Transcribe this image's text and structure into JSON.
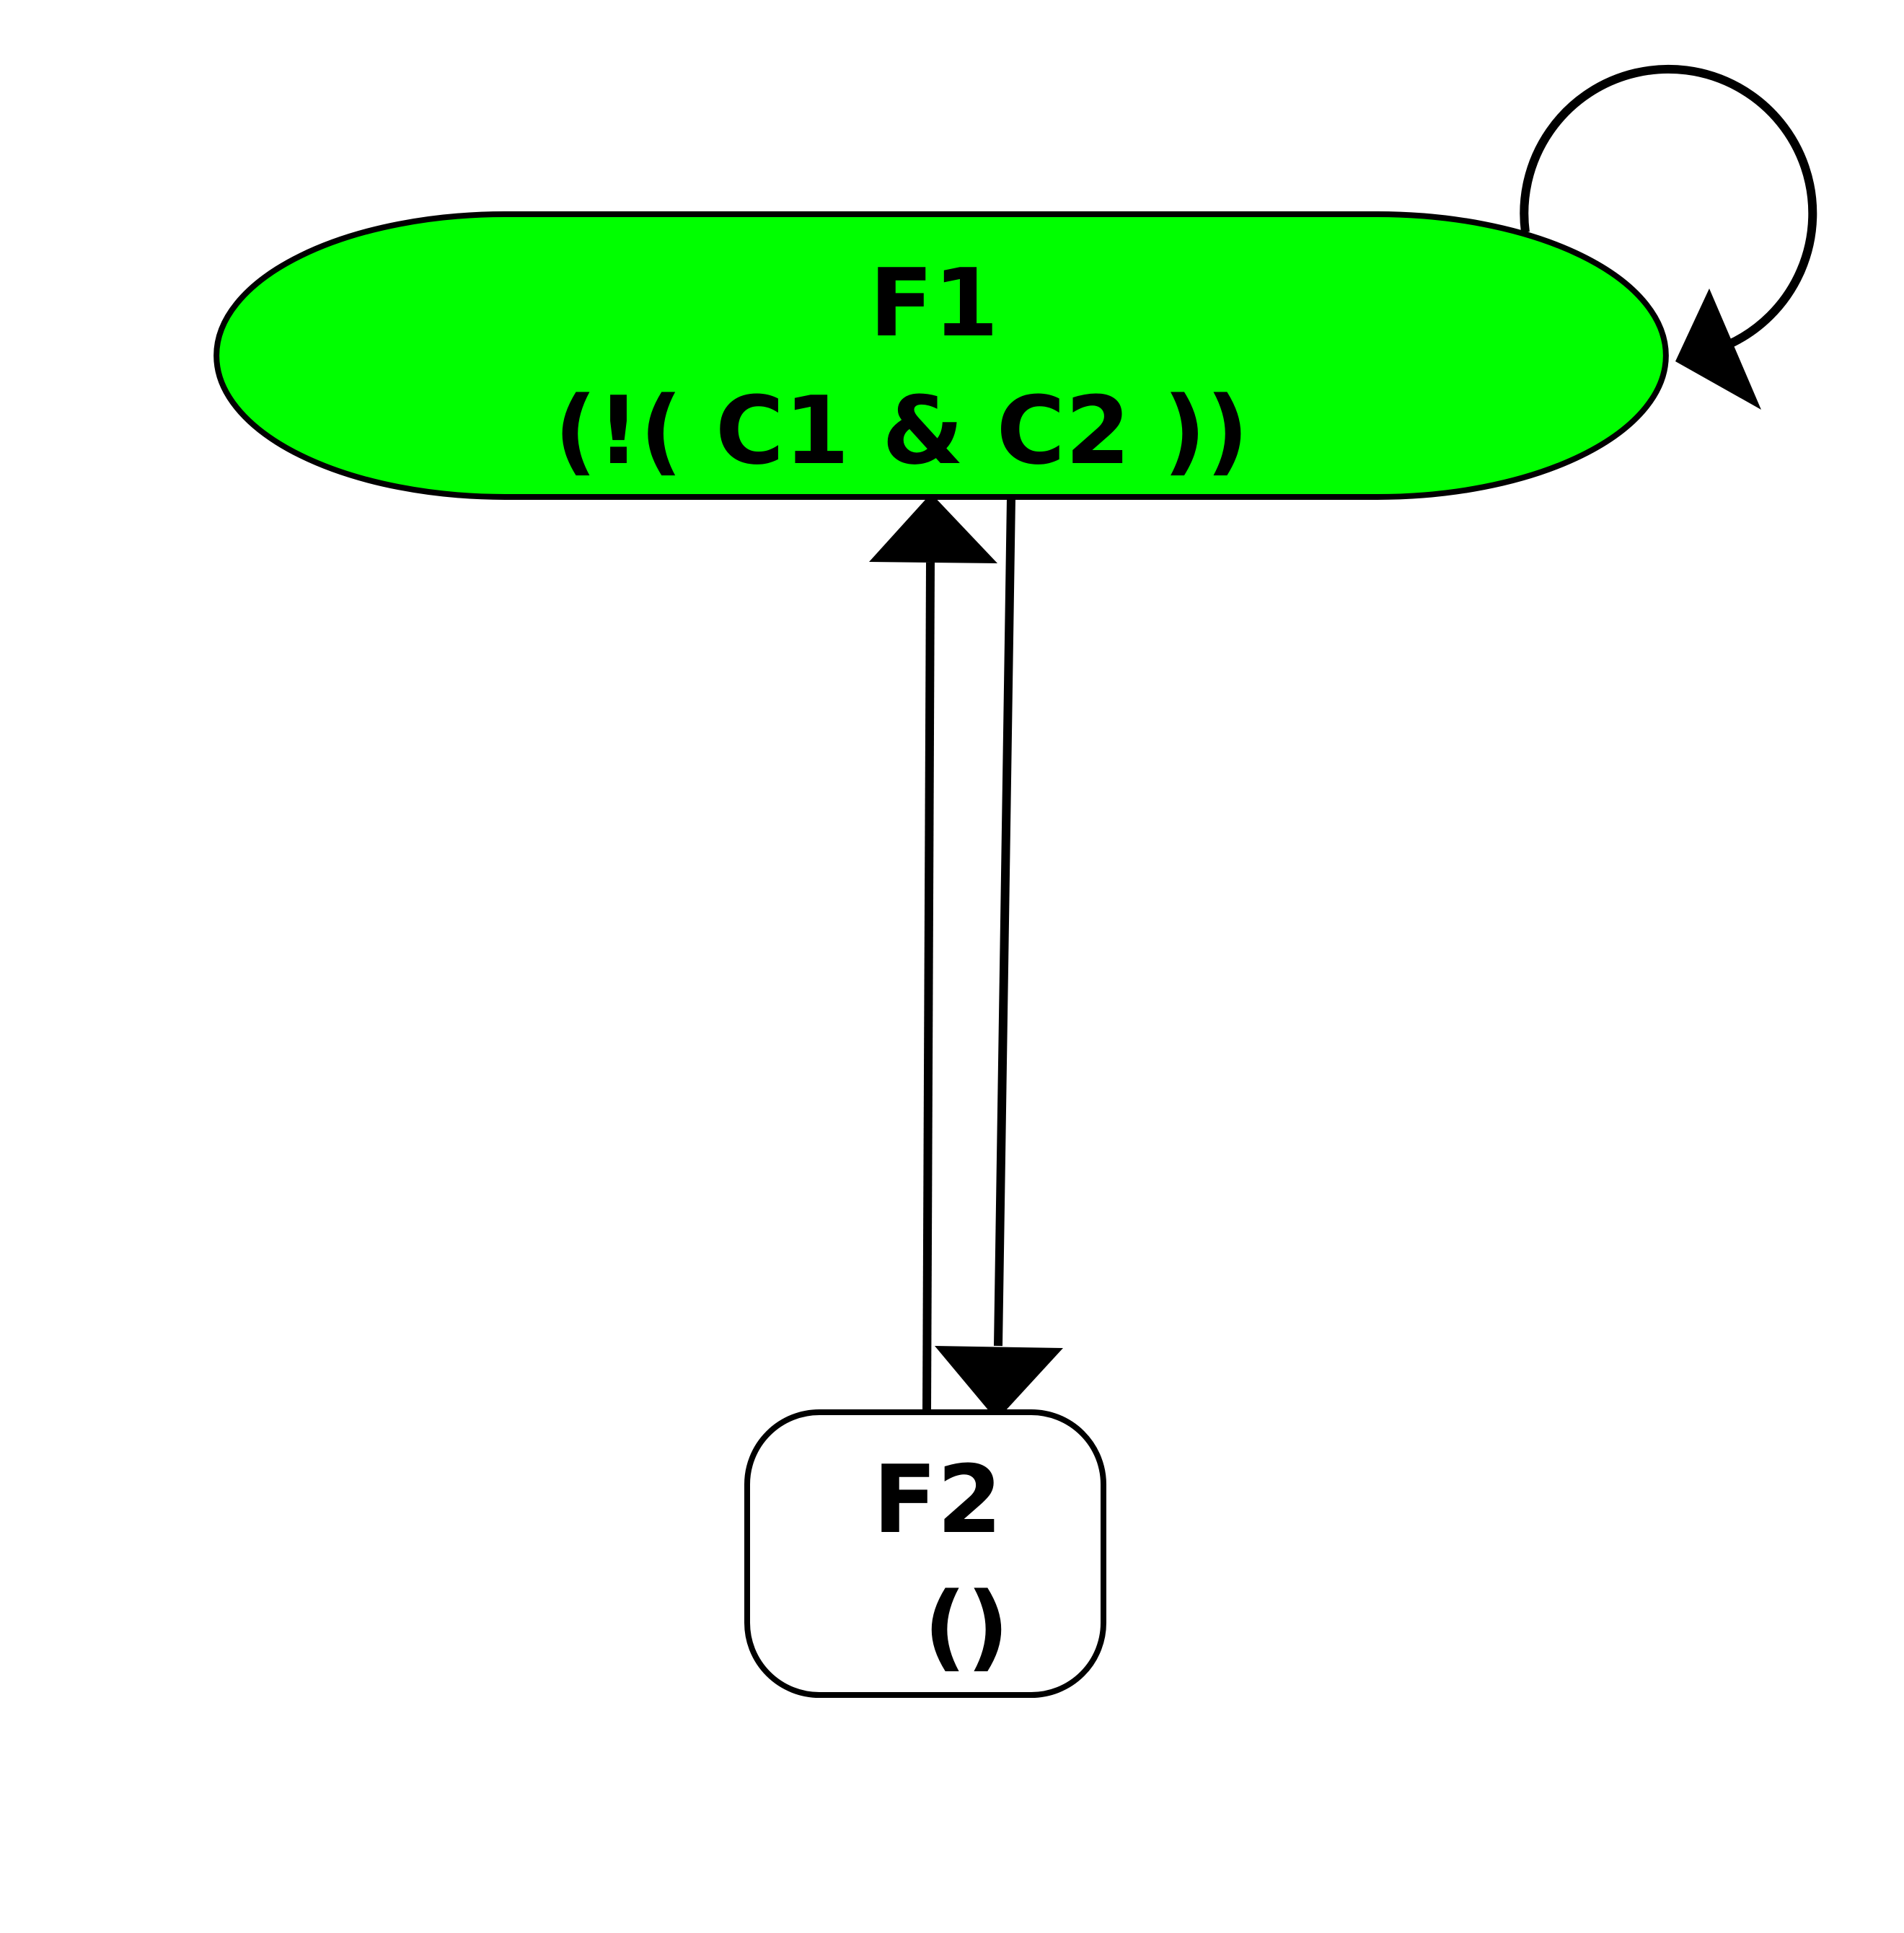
{
  "colors": {
    "active_node_fill": "#00ff00",
    "inactive_node_fill": "#ffffff",
    "stroke": "#000000"
  },
  "nodes": [
    {
      "id": "F1",
      "title": "F1",
      "condition": "(!( C1 & C2 ))",
      "shape": "stadium",
      "active": true
    },
    {
      "id": "F2",
      "title": "F2",
      "condition": "()",
      "shape": "rounded-rect",
      "active": false
    }
  ],
  "edges": [
    {
      "from": "F1",
      "to": "F1",
      "kind": "self-loop"
    },
    {
      "from": "F2",
      "to": "F1",
      "kind": "straight"
    },
    {
      "from": "F1",
      "to": "F2",
      "kind": "straight"
    }
  ]
}
